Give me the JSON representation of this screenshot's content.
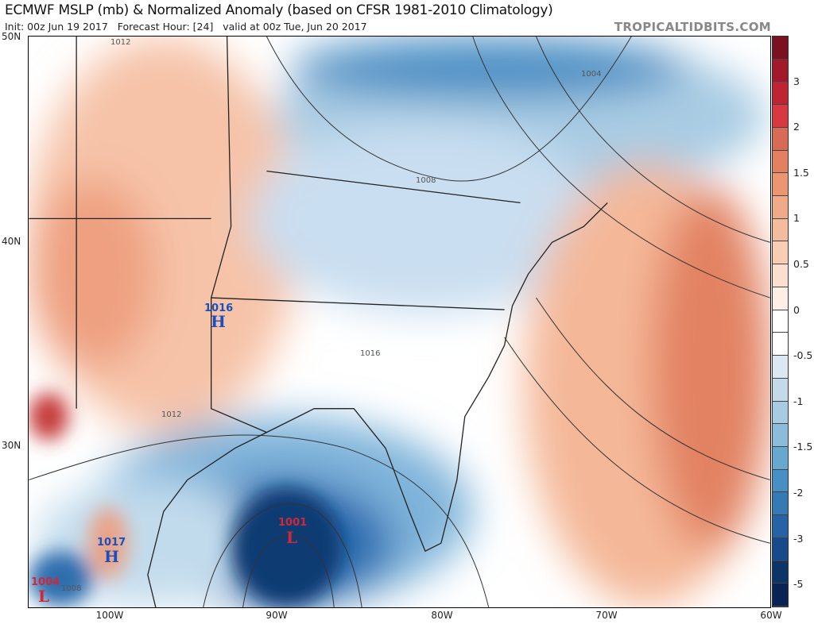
{
  "header": {
    "title": "ECMWF MSLP (mb) & Normalized Anomaly (based on CFSR 1981-2010 Climatology)",
    "subtitle": "Init: 00z Jun 19 2017   Forecast Hour: [24]   valid at 00z Tue, Jun 20 2017",
    "brand": "TROPICALTIDBITS.COM"
  },
  "axes": {
    "lat": [
      "50N",
      "40N",
      "30N"
    ],
    "lon": [
      "100W",
      "90W",
      "80W",
      "70W",
      "60W"
    ]
  },
  "colorbar": {
    "labels": [
      "3",
      "2",
      "1.5",
      "1",
      "0.5",
      "0",
      "-0.5",
      "-1",
      "-1.5",
      "-2",
      "-3",
      "-5"
    ],
    "colors": [
      "#7a1020",
      "#a3182a",
      "#c02331",
      "#d73841",
      "#d96b55",
      "#e3805f",
      "#eb9671",
      "#f0aa88",
      "#f4bb9d",
      "#f8cdb4",
      "#fbdfcf",
      "#fdeee6",
      "#ffffff",
      "#ffffff",
      "#dbe8f1",
      "#c3dbe9",
      "#a7cce2",
      "#8bbdda",
      "#67a8d0",
      "#4890c3",
      "#3579b5",
      "#2562a6",
      "#164a8a",
      "#0c3467",
      "#0a2355"
    ]
  },
  "pressure_centers": [
    {
      "type": "H",
      "value": "1016",
      "color": "#1a4fc0"
    },
    {
      "type": "L",
      "value": "1001",
      "color": "#d0283a"
    },
    {
      "type": "H",
      "value": "1017",
      "color": "#1a4fc0"
    },
    {
      "type": "L",
      "value": "1004",
      "color": "#d0283a"
    }
  ],
  "isobar_labels": [
    "1012",
    "1004",
    "1008",
    "1016",
    "1012",
    "1008"
  ]
}
